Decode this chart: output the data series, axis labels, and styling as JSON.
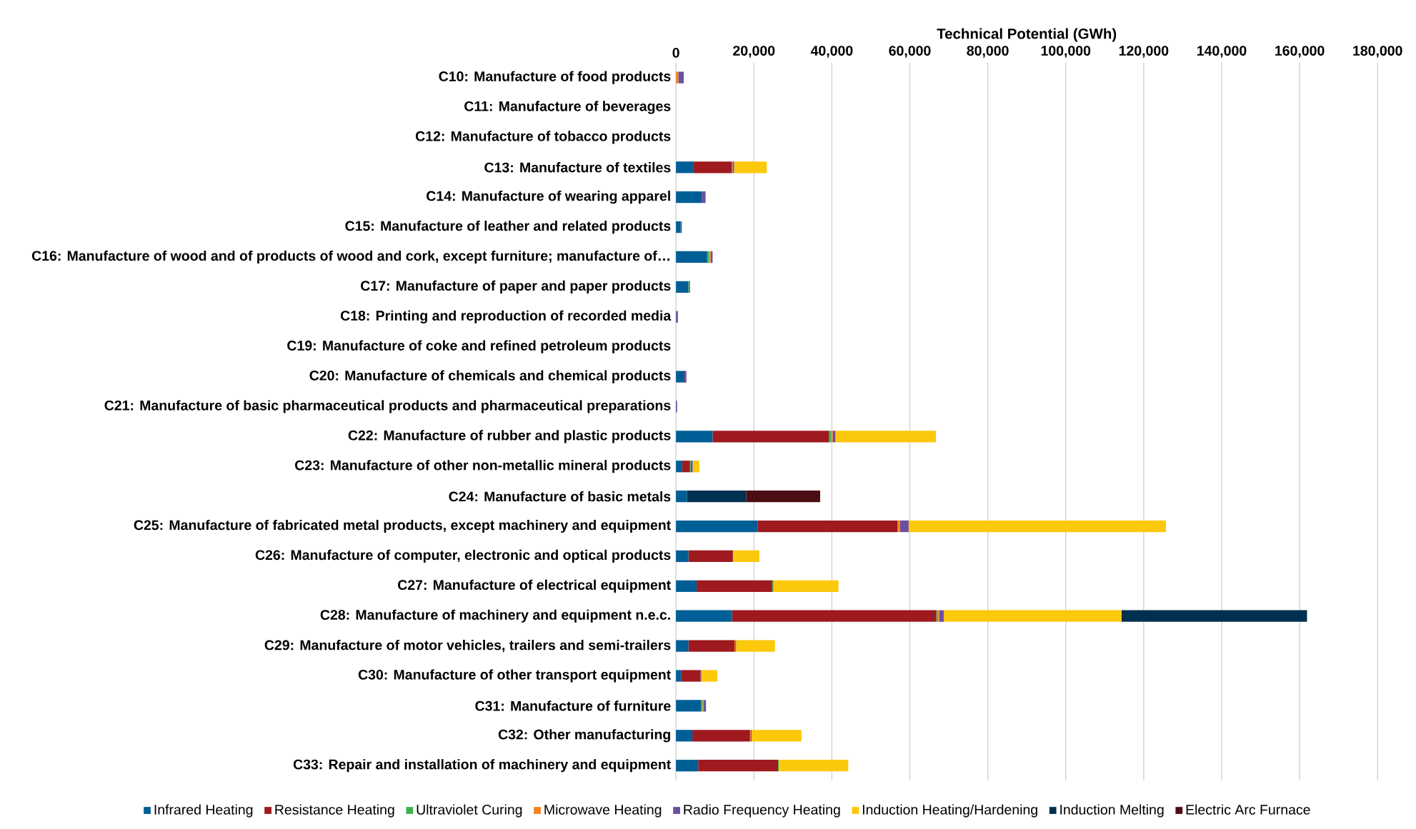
{
  "chart_data": {
    "type": "bar",
    "orientation": "horizontal",
    "stacked": true,
    "xlabel": "Technical Potential (GWh)",
    "categories": [
      "C10: Manufacture of food products",
      "C11: Manufacture of beverages",
      "C12: Manufacture of tobacco products",
      "C13: Manufacture of textiles",
      "C14: Manufacture of wearing apparel",
      "C15: Manufacture of leather and related products",
      "C16: Manufacture of wood and of products of wood and cork, except furniture; manufacture of…",
      "C17: Manufacture of paper and paper products",
      "C18: Printing and reproduction of recorded media",
      "C19: Manufacture of coke and refined petroleum products",
      "C20: Manufacture of chemicals and chemical products",
      "C21: Manufacture of basic pharmaceutical products and pharmaceutical preparations",
      "C22: Manufacture of rubber and plastic products",
      "C23: Manufacture of other non-metallic mineral products",
      "C24: Manufacture of basic metals",
      "C25: Manufacture of fabricated metal products, except machinery and equipment",
      "C26: Manufacture of computer, electronic and optical products",
      "C27: Manufacture of electrical equipment",
      "C28: Manufacture of machinery and equipment n.e.c.",
      "C29: Manufacture of motor vehicles, trailers and semi-trailers",
      "C30: Manufacture of other transport equipment",
      "C31: Manufacture of furniture",
      "C32: Other manufacturing",
      "C33: Repair and installation of machinery and equipment"
    ],
    "series": [
      {
        "name": "Infrared Heating",
        "color": "#005e96",
        "values": [
          0,
          0,
          0,
          4400,
          6600,
          1200,
          8000,
          3100,
          0,
          0,
          2200,
          0,
          9400,
          1600,
          2800,
          21000,
          3200,
          5300,
          14400,
          3200,
          1300,
          6400,
          4200,
          5700
        ]
      },
      {
        "name": "Resistance Heating",
        "color": "#9e1a1f",
        "values": [
          0,
          0,
          0,
          9900,
          0,
          0,
          0,
          0,
          0,
          0,
          200,
          0,
          29800,
          2000,
          0,
          35800,
          11400,
          19400,
          52400,
          11800,
          5000,
          0,
          14800,
          20500
        ]
      },
      {
        "name": "Ultraviolet Curing",
        "color": "#3cb44a",
        "values": [
          0,
          0,
          0,
          0,
          0,
          0,
          500,
          200,
          0,
          0,
          0,
          0,
          600,
          200,
          0,
          0,
          0,
          300,
          400,
          0,
          0,
          400,
          0,
          200
        ]
      },
      {
        "name": "Microwave Heating",
        "color": "#f58220",
        "values": [
          600,
          0,
          0,
          200,
          0,
          0,
          400,
          0,
          0,
          0,
          0,
          0,
          400,
          0,
          0,
          700,
          0,
          0,
          300,
          200,
          0,
          300,
          200,
          0
        ]
      },
      {
        "name": "Radio Frequency Heating",
        "color": "#6b4fa0",
        "values": [
          1400,
          0,
          0,
          400,
          1000,
          300,
          500,
          300,
          500,
          0,
          300,
          300,
          700,
          500,
          0,
          2200,
          0,
          0,
          1200,
          200,
          200,
          600,
          200,
          0
        ]
      },
      {
        "name": "Induction Heating/Hardening",
        "color": "#fcc80c",
        "values": [
          0,
          0,
          0,
          8400,
          0,
          0,
          0,
          0,
          0,
          0,
          0,
          0,
          25800,
          1700,
          0,
          66000,
          6800,
          16700,
          45600,
          10000,
          4100,
          0,
          12800,
          17800
        ]
      },
      {
        "name": "Induction Melting",
        "color": "#00304f",
        "values": [
          0,
          0,
          0,
          0,
          0,
          0,
          0,
          0,
          0,
          0,
          0,
          0,
          0,
          0,
          15200,
          0,
          0,
          0,
          47600,
          0,
          0,
          0,
          0,
          0
        ]
      },
      {
        "name": "Electric Arc Furnace",
        "color": "#4a0e14",
        "values": [
          0,
          0,
          0,
          0,
          0,
          0,
          0,
          0,
          0,
          0,
          0,
          0,
          0,
          0,
          19000,
          0,
          0,
          0,
          0,
          0,
          0,
          0,
          0,
          0
        ]
      }
    ],
    "xlim": [
      0,
      180000
    ],
    "xticks": [
      0,
      {
        "value": 20000,
        "label": "20,000"
      },
      {
        "value": 40000,
        "label": "40,000"
      },
      {
        "value": 60000,
        "label": "60,000"
      },
      {
        "value": 80000,
        "label": "80,000"
      },
      {
        "value": 100000,
        "label": "100,000"
      },
      {
        "value": 120000,
        "label": "120,000"
      },
      {
        "value": 140000,
        "label": "140,000"
      },
      {
        "value": 160000,
        "label": "160,000"
      },
      {
        "value": 180000,
        "label": "180,000"
      }
    ],
    "grid": "x",
    "legend": "bottom"
  }
}
